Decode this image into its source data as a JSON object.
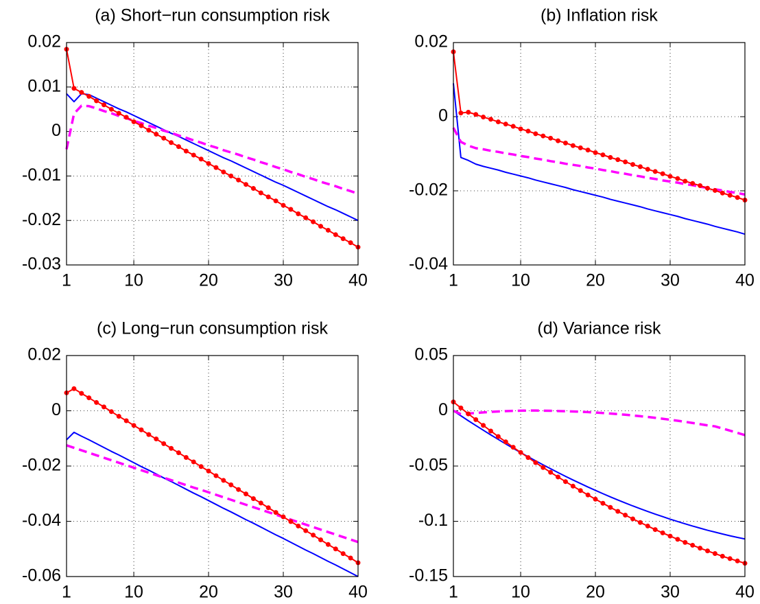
{
  "chart_data": [
    {
      "type": "line",
      "title": "(a) Short−run consumption risk",
      "x": [
        1,
        2,
        3,
        4,
        5,
        6,
        7,
        8,
        9,
        10,
        11,
        12,
        13,
        14,
        15,
        16,
        17,
        18,
        19,
        20,
        21,
        22,
        23,
        24,
        25,
        26,
        27,
        28,
        29,
        30,
        31,
        32,
        33,
        34,
        35,
        36,
        37,
        38,
        39,
        40
      ],
      "xlim": [
        1,
        40
      ],
      "xticks": [
        1,
        10,
        20,
        30,
        40
      ],
      "ylim": [
        -0.03,
        0.02
      ],
      "yticks": [
        -0.03,
        -0.02,
        -0.01,
        0,
        0.01,
        0.02
      ],
      "grid": true,
      "series": [
        {
          "color": "#0000ff",
          "linestyle": "solid",
          "marker": false,
          "values": [
            0.0085,
            0.0067,
            0.0085,
            0.0083,
            0.0075,
            0.0067,
            0.0059,
            0.0051,
            0.0044,
            0.0036,
            0.0028,
            0.002,
            0.0012,
            0.0004,
            -0.0004,
            -0.0011,
            -0.0019,
            -0.0027,
            -0.0035,
            -0.0043,
            -0.0051,
            -0.0059,
            -0.0066,
            -0.0074,
            -0.0082,
            -0.009,
            -0.0098,
            -0.0106,
            -0.0114,
            -0.0121,
            -0.0129,
            -0.0137,
            -0.0145,
            -0.0153,
            -0.0161,
            -0.0169,
            -0.0176,
            -0.0184,
            -0.0192,
            -0.02
          ]
        },
        {
          "color": "#ff00ff",
          "linestyle": "dashed",
          "marker": false,
          "values": [
            -0.004,
            0.004,
            0.0058,
            0.0057,
            0.0052,
            0.0046,
            0.0041,
            0.0035,
            0.003,
            0.0024,
            0.0019,
            0.0013,
            0.0008,
            0.0002,
            -0.0003,
            -0.0009,
            -0.0014,
            -0.002,
            -0.0025,
            -0.0031,
            -0.0036,
            -0.0042,
            -0.0047,
            -0.0052,
            -0.0058,
            -0.0063,
            -0.0069,
            -0.0074,
            -0.008,
            -0.0085,
            -0.0091,
            -0.0096,
            -0.0102,
            -0.0107,
            -0.0113,
            -0.0118,
            -0.0123,
            -0.0129,
            -0.0134,
            -0.014
          ]
        },
        {
          "color": "#ff0000",
          "linestyle": "solid",
          "marker": true,
          "values": [
            0.0185,
            0.0097,
            0.0088,
            0.0079,
            0.0069,
            0.006,
            0.005,
            0.0041,
            0.0032,
            0.0022,
            0.0013,
            0.0003,
            -0.0006,
            -0.0015,
            -0.0025,
            -0.0034,
            -0.0044,
            -0.0053,
            -0.0062,
            -0.0072,
            -0.0081,
            -0.0091,
            -0.01,
            -0.0109,
            -0.0119,
            -0.0128,
            -0.0138,
            -0.0147,
            -0.0156,
            -0.0166,
            -0.0175,
            -0.0185,
            -0.0194,
            -0.0203,
            -0.0213,
            -0.0222,
            -0.0232,
            -0.0241,
            -0.025,
            -0.026
          ]
        }
      ]
    },
    {
      "type": "line",
      "title": "(b) Inflation risk",
      "x": [
        1,
        2,
        3,
        4,
        5,
        6,
        7,
        8,
        9,
        10,
        11,
        12,
        13,
        14,
        15,
        16,
        17,
        18,
        19,
        20,
        21,
        22,
        23,
        24,
        25,
        26,
        27,
        28,
        29,
        30,
        31,
        32,
        33,
        34,
        35,
        36,
        37,
        38,
        39,
        40
      ],
      "xlim": [
        1,
        40
      ],
      "xticks": [
        1,
        10,
        20,
        30,
        40
      ],
      "ylim": [
        -0.04,
        0.02
      ],
      "yticks": [
        -0.04,
        -0.02,
        0,
        0.02
      ],
      "grid": true,
      "series": [
        {
          "color": "#0000ff",
          "linestyle": "solid",
          "marker": false,
          "values": [
            0.009,
            -0.011,
            -0.0118,
            -0.0128,
            -0.0134,
            -0.0139,
            -0.0144,
            -0.015,
            -0.0155,
            -0.016,
            -0.0165,
            -0.0171,
            -0.0176,
            -0.0181,
            -0.0186,
            -0.0191,
            -0.0197,
            -0.0202,
            -0.0207,
            -0.0212,
            -0.0217,
            -0.0223,
            -0.0228,
            -0.0233,
            -0.0238,
            -0.0243,
            -0.0249,
            -0.0254,
            -0.0259,
            -0.0264,
            -0.0269,
            -0.0275,
            -0.028,
            -0.0285,
            -0.029,
            -0.0296,
            -0.0301,
            -0.0306,
            -0.0311,
            -0.0317
          ]
        },
        {
          "color": "#ff00ff",
          "linestyle": "dashed",
          "marker": false,
          "values": [
            -0.003,
            -0.0068,
            -0.0078,
            -0.0085,
            -0.0088,
            -0.0092,
            -0.0095,
            -0.0099,
            -0.0102,
            -0.0106,
            -0.0109,
            -0.0113,
            -0.0116,
            -0.012,
            -0.0123,
            -0.0127,
            -0.013,
            -0.0133,
            -0.0137,
            -0.014,
            -0.0144,
            -0.0147,
            -0.0151,
            -0.0154,
            -0.0158,
            -0.0161,
            -0.0165,
            -0.0168,
            -0.0172,
            -0.0175,
            -0.0178,
            -0.0182,
            -0.0185,
            -0.0189,
            -0.0192,
            -0.0196,
            -0.0199,
            -0.0203,
            -0.0206,
            -0.021
          ]
        },
        {
          "color": "#ff0000",
          "linestyle": "solid",
          "marker": true,
          "values": [
            0.0175,
            0.001,
            0.0012,
            0.0006,
            -0.0001,
            -0.0007,
            -0.0014,
            -0.002,
            -0.0026,
            -0.0033,
            -0.0039,
            -0.0046,
            -0.0052,
            -0.0058,
            -0.0065,
            -0.0071,
            -0.0078,
            -0.0084,
            -0.009,
            -0.0097,
            -0.0103,
            -0.011,
            -0.0116,
            -0.0122,
            -0.0129,
            -0.0135,
            -0.0142,
            -0.0148,
            -0.0154,
            -0.0161,
            -0.0167,
            -0.0174,
            -0.018,
            -0.0186,
            -0.0193,
            -0.0199,
            -0.0206,
            -0.0212,
            -0.0218,
            -0.0225
          ]
        }
      ]
    },
    {
      "type": "line",
      "title": "(c) Long−run consumption risk",
      "x": [
        1,
        2,
        3,
        4,
        5,
        6,
        7,
        8,
        9,
        10,
        11,
        12,
        13,
        14,
        15,
        16,
        17,
        18,
        19,
        20,
        21,
        22,
        23,
        24,
        25,
        26,
        27,
        28,
        29,
        30,
        31,
        32,
        33,
        34,
        35,
        36,
        37,
        38,
        39,
        40
      ],
      "xlim": [
        1,
        40
      ],
      "xticks": [
        1,
        10,
        20,
        30,
        40
      ],
      "ylim": [
        -0.06,
        0.02
      ],
      "yticks": [
        -0.06,
        -0.04,
        -0.02,
        0,
        0.02
      ],
      "grid": true,
      "series": [
        {
          "color": "#0000ff",
          "linestyle": "solid",
          "marker": false,
          "values": [
            -0.0105,
            -0.0078,
            -0.0092,
            -0.0105,
            -0.0119,
            -0.0133,
            -0.0147,
            -0.016,
            -0.0174,
            -0.0188,
            -0.0202,
            -0.0215,
            -0.0229,
            -0.0243,
            -0.0256,
            -0.027,
            -0.0284,
            -0.0298,
            -0.0311,
            -0.0325,
            -0.0339,
            -0.0353,
            -0.0366,
            -0.038,
            -0.0394,
            -0.0407,
            -0.0421,
            -0.0435,
            -0.0449,
            -0.0462,
            -0.0476,
            -0.049,
            -0.0504,
            -0.0517,
            -0.0531,
            -0.0545,
            -0.0558,
            -0.0572,
            -0.0586,
            -0.06
          ]
        },
        {
          "color": "#ff00ff",
          "linestyle": "dashed",
          "marker": false,
          "values": [
            -0.0125,
            -0.0134,
            -0.0143,
            -0.0152,
            -0.0161,
            -0.017,
            -0.0179,
            -0.0188,
            -0.0197,
            -0.0206,
            -0.0215,
            -0.0224,
            -0.0233,
            -0.0242,
            -0.0251,
            -0.026,
            -0.0269,
            -0.0278,
            -0.0286,
            -0.0295,
            -0.0304,
            -0.0313,
            -0.0322,
            -0.0331,
            -0.034,
            -0.0349,
            -0.0358,
            -0.0367,
            -0.0376,
            -0.0385,
            -0.0394,
            -0.0403,
            -0.0412,
            -0.0421,
            -0.043,
            -0.0439,
            -0.0448,
            -0.0457,
            -0.0466,
            -0.0475
          ]
        },
        {
          "color": "#ff0000",
          "linestyle": "solid",
          "marker": true,
          "values": [
            0.0065,
            0.008,
            0.0063,
            0.0047,
            0.003,
            0.0014,
            -0.0003,
            -0.002,
            -0.0036,
            -0.0053,
            -0.0069,
            -0.0086,
            -0.0102,
            -0.0119,
            -0.0136,
            -0.0152,
            -0.0169,
            -0.0185,
            -0.0202,
            -0.0218,
            -0.0235,
            -0.0252,
            -0.0268,
            -0.0285,
            -0.0301,
            -0.0318,
            -0.0334,
            -0.0351,
            -0.0368,
            -0.0384,
            -0.0401,
            -0.0417,
            -0.0434,
            -0.045,
            -0.0467,
            -0.0484,
            -0.05,
            -0.0517,
            -0.0533,
            -0.055
          ]
        }
      ]
    },
    {
      "type": "line",
      "title": "(d) Variance risk",
      "x": [
        1,
        2,
        3,
        4,
        5,
        6,
        7,
        8,
        9,
        10,
        11,
        12,
        13,
        14,
        15,
        16,
        17,
        18,
        19,
        20,
        21,
        22,
        23,
        24,
        25,
        26,
        27,
        28,
        29,
        30,
        31,
        32,
        33,
        34,
        35,
        36,
        37,
        38,
        39,
        40
      ],
      "xlim": [
        1,
        40
      ],
      "xticks": [
        1,
        10,
        20,
        30,
        40
      ],
      "ylim": [
        -0.15,
        0.05
      ],
      "yticks": [
        -0.15,
        -0.1,
        -0.05,
        0,
        0.05
      ],
      "grid": true,
      "series": [
        {
          "color": "#0000ff",
          "linestyle": "solid",
          "marker": false,
          "values": [
            0,
            -0.0045,
            -0.009,
            -0.0133,
            -0.0176,
            -0.0218,
            -0.0259,
            -0.03,
            -0.0339,
            -0.0378,
            -0.0416,
            -0.0453,
            -0.0489,
            -0.0524,
            -0.0559,
            -0.0593,
            -0.0626,
            -0.0658,
            -0.069,
            -0.072,
            -0.075,
            -0.0779,
            -0.0807,
            -0.0834,
            -0.0861,
            -0.0886,
            -0.0911,
            -0.0935,
            -0.0958,
            -0.0981,
            -0.1002,
            -0.1023,
            -0.1043,
            -0.1062,
            -0.1081,
            -0.1098,
            -0.1115,
            -0.1131,
            -0.1146,
            -0.116
          ]
        },
        {
          "color": "#ff00ff",
          "linestyle": "dashed",
          "marker": false,
          "values": [
            0,
            -0.003,
            -0.0025,
            -0.002,
            -0.0015,
            -0.001,
            -0.0006,
            -0.0003,
            -0.0001,
            0.0001,
            0.0002,
            0.0002,
            0.0001,
            0,
            -0.0002,
            -0.0004,
            -0.0006,
            -0.0009,
            -0.0012,
            -0.0016,
            -0.002,
            -0.0025,
            -0.003,
            -0.0036,
            -0.0042,
            -0.0049,
            -0.0056,
            -0.0064,
            -0.0072,
            -0.0081,
            -0.009,
            -0.01,
            -0.011,
            -0.0121,
            -0.0132,
            -0.0141,
            -0.016,
            -0.018,
            -0.02,
            -0.022
          ]
        },
        {
          "color": "#ff0000",
          "linestyle": "solid",
          "marker": true,
          "values": [
            0.008,
            0.0026,
            -0.0028,
            -0.008,
            -0.0132,
            -0.0183,
            -0.0233,
            -0.0281,
            -0.033,
            -0.0377,
            -0.0423,
            -0.0469,
            -0.0513,
            -0.0557,
            -0.0599,
            -0.0641,
            -0.0682,
            -0.0722,
            -0.0762,
            -0.08,
            -0.0837,
            -0.0874,
            -0.091,
            -0.0944,
            -0.0978,
            -0.1011,
            -0.1043,
            -0.1075,
            -0.1105,
            -0.1134,
            -0.1163,
            -0.1191,
            -0.1217,
            -0.1243,
            -0.1268,
            -0.1292,
            -0.1316,
            -0.1338,
            -0.1359,
            -0.138
          ]
        }
      ]
    }
  ]
}
